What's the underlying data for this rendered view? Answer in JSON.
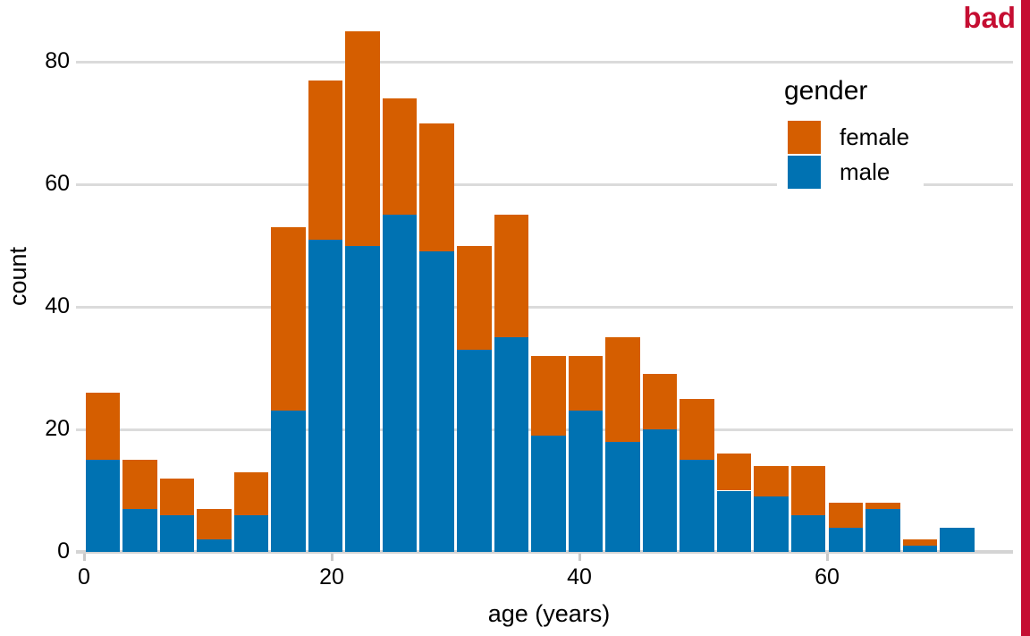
{
  "annotation": {
    "label": "bad"
  },
  "colors": {
    "female": "#D55E00",
    "male": "#0072B2",
    "bad": "#C50E32",
    "grid": "#DBDBDB",
    "axis_line": "#D4D4D4",
    "tick": "#C9C9C9",
    "text": "#000000",
    "background": "#FFFFFF"
  },
  "chart_data": {
    "type": "bar",
    "stacked": true,
    "title": "",
    "xlabel": "age (years)",
    "ylabel": "count",
    "bin_width_years": 3,
    "bin_start": 0,
    "bins": [
      "0-3",
      "3-6",
      "6-9",
      "9-12",
      "12-15",
      "15-18",
      "18-21",
      "21-24",
      "24-27",
      "27-30",
      "30-33",
      "33-36",
      "36-39",
      "39-42",
      "42-45",
      "45-48",
      "48-51",
      "51-54",
      "54-57",
      "57-60",
      "60-63",
      "63-66",
      "66-69",
      "69-72"
    ],
    "series": [
      {
        "name": "male",
        "color": "#0072B2",
        "values": [
          15,
          7,
          6,
          2,
          6,
          23,
          51,
          50,
          55,
          49,
          33,
          35,
          19,
          23,
          18,
          20,
          15,
          10,
          9,
          6,
          4,
          7,
          1,
          4
        ]
      },
      {
        "name": "female",
        "color": "#D55E00",
        "values": [
          11,
          8,
          6,
          5,
          7,
          30,
          26,
          35,
          19,
          21,
          17,
          20,
          13,
          9,
          17,
          9,
          10,
          6,
          5,
          8,
          4,
          1,
          1,
          0
        ]
      }
    ],
    "totals": [
      26,
      15,
      12,
      7,
      13,
      53,
      77,
      85,
      74,
      70,
      50,
      55,
      32,
      32,
      35,
      29,
      25,
      16,
      14,
      14,
      8,
      8,
      2,
      4
    ],
    "x_ticks": [
      0,
      20,
      40,
      60
    ],
    "y_ticks": [
      0,
      20,
      40,
      60,
      80
    ],
    "xlim": [
      0,
      75
    ],
    "ylim": [
      0,
      88
    ],
    "grid": "horizontal",
    "legend": {
      "title": "gender",
      "position": "upper-right",
      "items": [
        {
          "label": "female",
          "color": "#D55E00"
        },
        {
          "label": "male",
          "color": "#0072B2"
        }
      ]
    }
  }
}
